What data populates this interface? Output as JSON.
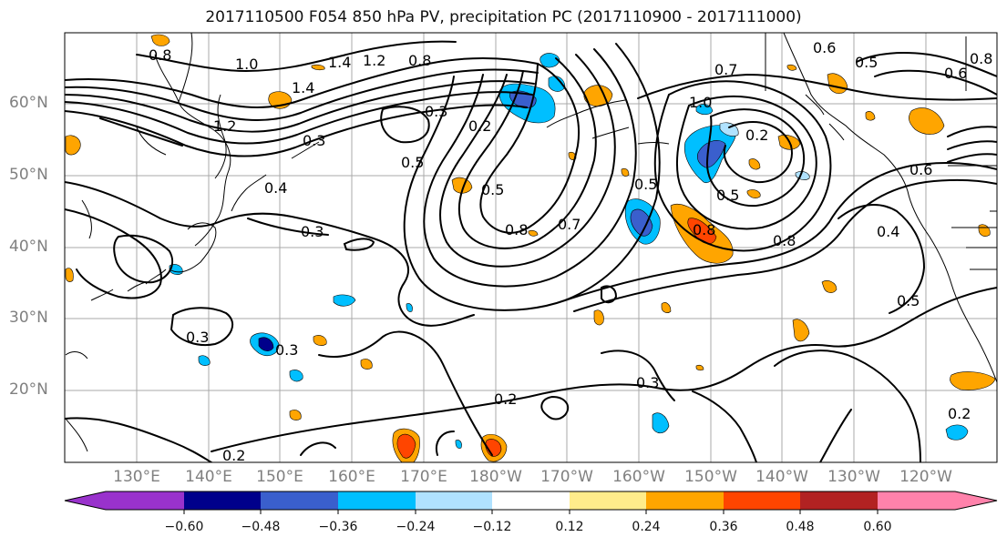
{
  "title": "2017110500 F054 850 hPa PV, precipitation PC (2017110900 - 2017111000)",
  "lat_labels": [
    "60°N",
    "50°N",
    "40°N",
    "30°N",
    "20°N"
  ],
  "lon_labels": [
    "130°E",
    "140°E",
    "150°E",
    "160°E",
    "170°E",
    "180°W",
    "170°W",
    "160°W",
    "150°W",
    "140°W",
    "130°W",
    "120°W"
  ],
  "colorbar": {
    "ticks": [
      "−0.60",
      "−0.48",
      "−0.36",
      "−0.24",
      "−0.12",
      "0.12",
      "0.24",
      "0.36",
      "0.48",
      "0.60"
    ],
    "colors": [
      "#9932cc",
      "#00008b",
      "#3a5fcd",
      "#00bfff",
      "#b0e2ff",
      "#ffffff",
      "#ffec8b",
      "#ffa500",
      "#ff4500",
      "#b22222",
      "#ff82ab"
    ]
  },
  "contour_labels": [
    "0.8",
    "1.0",
    "1.4",
    "1.2",
    "0.8",
    "0.6",
    "0.5",
    "0.6",
    "0.8",
    "1.4",
    "0.3",
    "0.2",
    "0.3",
    "0.5",
    "0.4",
    "0.3",
    "0.5",
    "0.8",
    "0.7",
    "0.5",
    "0.8",
    "0.8",
    "0.5",
    "0.6",
    "0.4",
    "0.5",
    "0.3",
    "0.3",
    "0.3",
    "0.2",
    "0.2",
    "0.2",
    "0.2",
    "1.2",
    "0.7",
    "1.0"
  ]
}
